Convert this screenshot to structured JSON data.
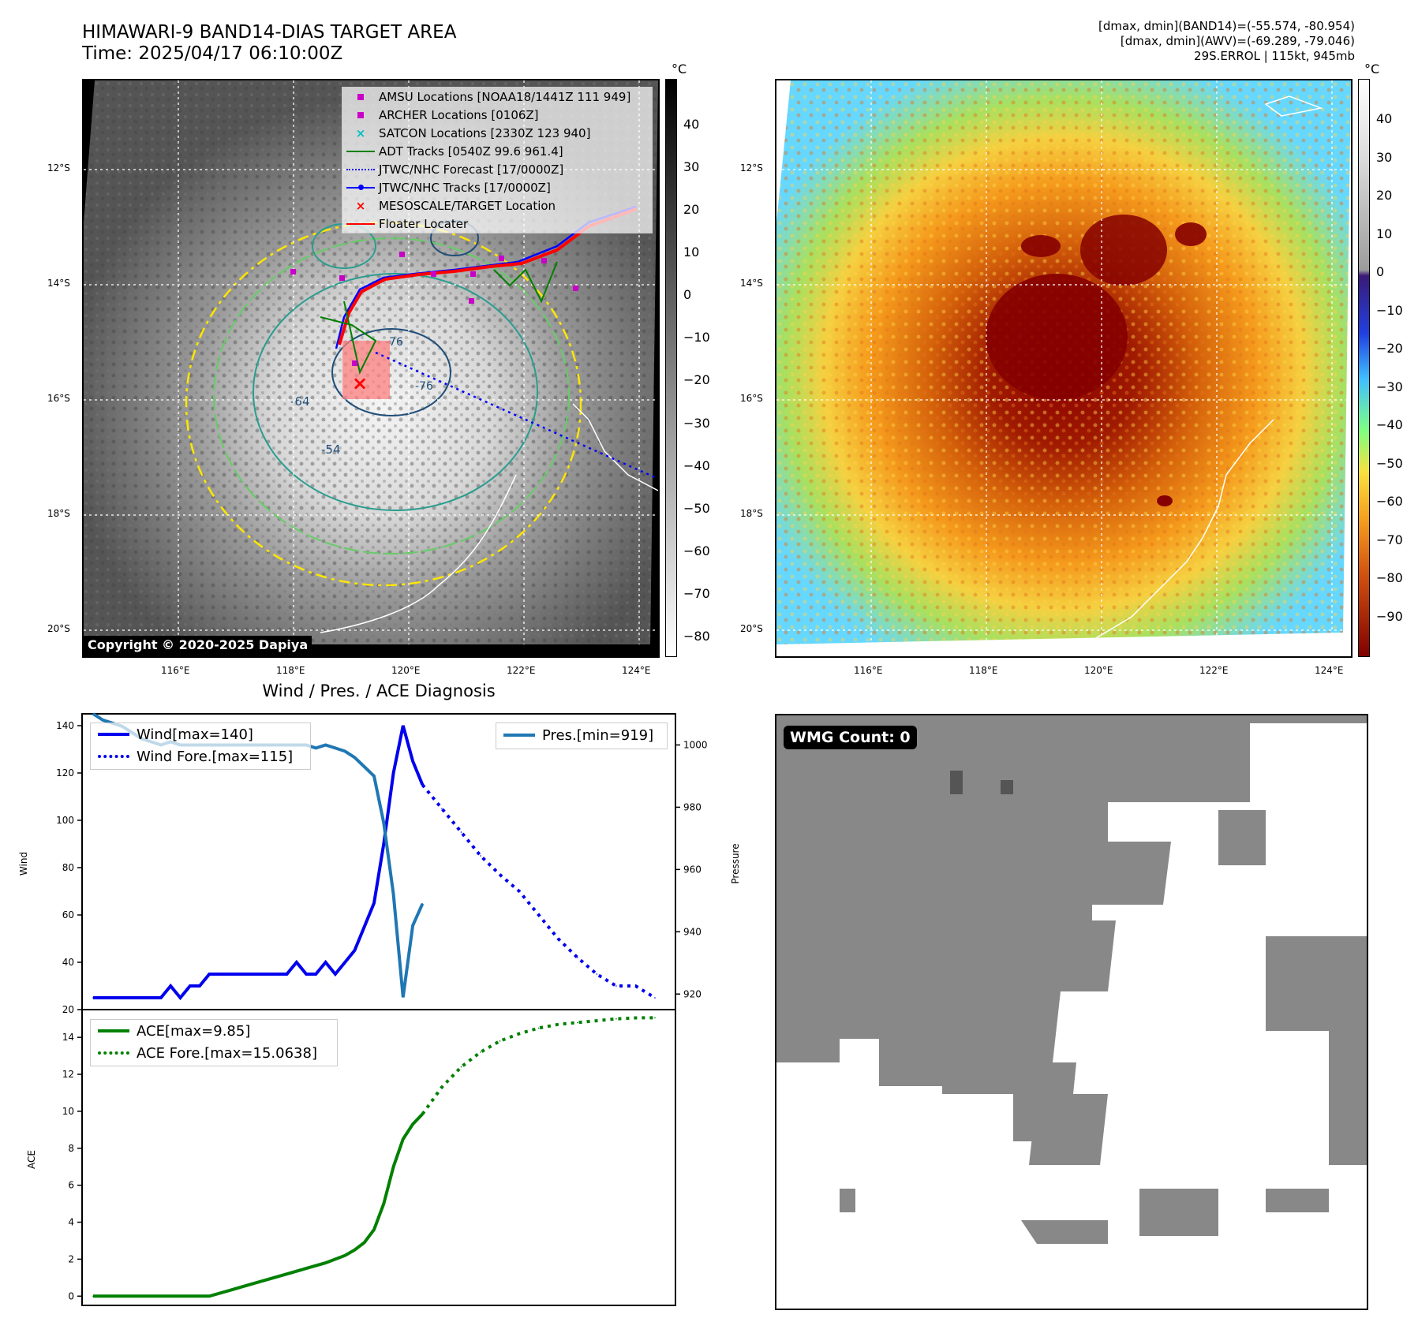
{
  "header": {
    "title_line1": "HIMAWARI-9 BAND14-DIAS TARGET AREA",
    "title_line2": "Time: 2025/04/17 06:10:00Z",
    "right_line1": "[dmax, dmin](BAND14)=(-55.574, -80.954)",
    "right_line2": "[dmax, dmin](AWV)=(-69.289, -79.046)",
    "right_line3": "29S.ERROL | 115kt, 945mb"
  },
  "map": {
    "lat_labels": [
      "12°S",
      "14°S",
      "16°S",
      "18°S",
      "20°S"
    ],
    "lon_labels": [
      "116°E",
      "118°E",
      "120°E",
      "122°E",
      "124°E"
    ],
    "copyright": "Copyright © 2020-2025 Dapiya",
    "contour_labels": [
      "-64",
      "-54",
      "-76",
      "-76"
    ],
    "legend": [
      {
        "label": "AMSU Locations [NOAA18/1441Z 111 949]",
        "symbol": "square",
        "color": "#c800c8"
      },
      {
        "label": "ARCHER Locations [0106Z]",
        "symbol": "square",
        "color": "#c800c8"
      },
      {
        "label": "SATCON Locations [2330Z 123 940]",
        "symbol": "x",
        "color": "#00c0c0"
      },
      {
        "label": "ADT Tracks [0540Z 99.6 961.4]",
        "symbol": "line",
        "color": "#008000"
      },
      {
        "label": "JTWC/NHC Forecast [17/0000Z]",
        "symbol": "dotted",
        "color": "#0000ff"
      },
      {
        "label": "JTWC/NHC Tracks [17/0000Z]",
        "symbol": "line-dot",
        "color": "#0000ff"
      },
      {
        "label": "MESOSCALE/TARGET Location",
        "symbol": "x",
        "color": "#ff0000"
      },
      {
        "label": "Floater Locater",
        "symbol": "line",
        "color": "#ff0000"
      }
    ],
    "colorbar1": {
      "unit": "°C",
      "ticks": [
        "40",
        "30",
        "20",
        "10",
        "0",
        "−10",
        "−20",
        "−30",
        "−40",
        "−50",
        "−60",
        "−70",
        "−80"
      ]
    },
    "colorbar2": {
      "unit": "°C",
      "ticks": [
        "40",
        "30",
        "20",
        "10",
        "0",
        "−10",
        "−20",
        "−30",
        "−40",
        "−50",
        "−60",
        "−70",
        "−80",
        "−90"
      ]
    }
  },
  "chart_data": [
    {
      "type": "line",
      "title": "Wind / Pres. / ACE Diagnosis",
      "ylabel": "Wind",
      "y2label": "Pressure",
      "ylim": [
        20,
        145
      ],
      "y2lim": [
        915,
        1010
      ],
      "yticks": [
        "20",
        "40",
        "60",
        "80",
        "100",
        "120",
        "140"
      ],
      "y2ticks": [
        "920",
        "940",
        "960",
        "980",
        "1000"
      ],
      "series": [
        {
          "name": "Wind[max=140]",
          "style": "solid",
          "color": "#0000ee",
          "x": [
            0,
            1,
            2,
            3,
            4,
            5,
            6,
            7,
            8,
            9,
            10,
            11,
            12,
            13,
            14,
            15,
            16,
            17,
            18,
            19,
            20,
            21,
            22,
            23,
            24,
            25,
            26,
            27,
            28,
            29,
            30,
            31,
            32,
            33,
            34,
            35
          ],
          "values": [
            25,
            25,
            25,
            25,
            25,
            25,
            25,
            25,
            30,
            25,
            30,
            30,
            35,
            35,
            35,
            35,
            35,
            35,
            35,
            35,
            35,
            40,
            35,
            35,
            40,
            35,
            40,
            45,
            55,
            65,
            90,
            120,
            140,
            125,
            115,
            null
          ]
        },
        {
          "name": "Wind Fore.[max=115]",
          "style": "dotted",
          "color": "#0000ee",
          "x": [
            34,
            36,
            38,
            40,
            42,
            44,
            46,
            48,
            50,
            52,
            54,
            56,
            58
          ],
          "values": [
            115,
            105,
            95,
            85,
            77,
            70,
            60,
            50,
            42,
            35,
            30,
            30,
            25
          ]
        },
        {
          "name": "Pres.[min=919]",
          "style": "solid",
          "color": "#1f77b4",
          "x": [
            0,
            1,
            2,
            3,
            4,
            5,
            6,
            7,
            8,
            9,
            10,
            11,
            12,
            13,
            14,
            15,
            16,
            17,
            18,
            19,
            20,
            21,
            22,
            23,
            24,
            25,
            26,
            27,
            28,
            29,
            30,
            31,
            32,
            33,
            34
          ],
          "values": [
            1010,
            1008,
            1007,
            1006,
            1004,
            1002,
            1001,
            1000,
            1001,
            1000,
            1000,
            1000,
            1000,
            1000,
            1000,
            1000,
            1000,
            1000,
            1000,
            1000,
            1000,
            1000,
            1000,
            999,
            1000,
            999,
            998,
            996,
            993,
            990,
            975,
            952,
            919,
            942,
            949
          ]
        }
      ]
    },
    {
      "type": "line",
      "ylabel": "ACE",
      "ylim": [
        -0.5,
        15.5
      ],
      "yticks": [
        "0",
        "2",
        "4",
        "6",
        "8",
        "10",
        "12",
        "14"
      ],
      "series": [
        {
          "name": "ACE[max=9.85]",
          "style": "solid",
          "color": "#008000",
          "x": [
            0,
            2,
            4,
            6,
            8,
            10,
            12,
            14,
            16,
            18,
            20,
            22,
            24,
            26,
            27,
            28,
            29,
            30,
            31,
            32,
            33,
            34
          ],
          "values": [
            0,
            0,
            0,
            0,
            0,
            0,
            0,
            0.3,
            0.6,
            0.9,
            1.2,
            1.5,
            1.8,
            2.2,
            2.5,
            2.9,
            3.6,
            5.0,
            7.0,
            8.5,
            9.3,
            9.85
          ]
        },
        {
          "name": "ACE Fore.[max=15.0638]",
          "style": "dotted",
          "color": "#008000",
          "x": [
            34,
            36,
            38,
            40,
            42,
            44,
            46,
            48,
            50,
            52,
            54,
            56,
            58
          ],
          "values": [
            9.85,
            11.3,
            12.4,
            13.2,
            13.8,
            14.2,
            14.5,
            14.7,
            14.8,
            14.9,
            15.0,
            15.05,
            15.06
          ]
        }
      ]
    }
  ],
  "wmg": {
    "label": "WMG Count: 0"
  }
}
